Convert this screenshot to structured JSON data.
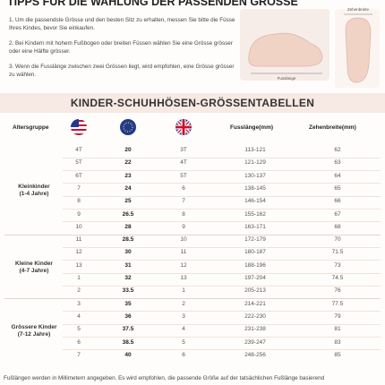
{
  "header": {
    "title": "TIPPS FÜR DIE WAHLUNG DER PASSENDEN GRÖSSE",
    "tips": [
      "1. Um die passendste Grösse und den besten Sitz zu erhalten, messen Sie bitte die Füsse Ihres Kindes, bevor Sie einkaufen.",
      "2. Bei Kindern mit hohem Fußbogen oder breiten Füssen wählen Sie eine Grösse grösser oder eine Hälfte grösser.",
      "3. Wenn die Fusslänge zwischen zwei Grössen liegt, wird empfohlen, eine Grösse grösser zu wählen."
    ],
    "illustration": {
      "width_label": "Zehenbreite",
      "length_label": "Fusslänge"
    }
  },
  "table": {
    "title": "KINDER-SCHUHHÖSEN-GRÖSSENTABELLEN",
    "headers": {
      "group": "Altersgruppe",
      "length": "Fusslänge(mm)",
      "width": "Zehenbreite(mm)"
    },
    "groups": [
      {
        "name": "Kleinkinder",
        "ages": "(1-4 Jahre)",
        "rows": [
          [
            "4T",
            "20",
            "3T",
            "113-121",
            "62"
          ],
          [
            "5T",
            "22",
            "4T",
            "121-129",
            "63"
          ],
          [
            "6T",
            "23",
            "5T",
            "130-137",
            "64"
          ],
          [
            "7",
            "24",
            "6",
            "138-145",
            "65"
          ],
          [
            "8",
            "25",
            "7",
            "146-154",
            "66"
          ],
          [
            "9",
            "26.5",
            "8",
            "155-162",
            "67"
          ],
          [
            "10",
            "28",
            "9",
            "163-171",
            "68"
          ]
        ]
      },
      {
        "name": "Kleine Kinder",
        "ages": "(4-7 Jahre)",
        "rows": [
          [
            "11",
            "28.5",
            "10",
            "172-179",
            "70"
          ],
          [
            "12",
            "30",
            "11",
            "180-187",
            "71.5"
          ],
          [
            "13",
            "31",
            "12",
            "188-196",
            "73"
          ],
          [
            "1",
            "32",
            "13",
            "197-204",
            "74.5"
          ],
          [
            "2",
            "33.5",
            "1",
            "205-213",
            "76"
          ]
        ]
      },
      {
        "name": "Grössere Kinder",
        "ages": "(7-12 Jahre)",
        "rows": [
          [
            "3",
            "35",
            "2",
            "214-221",
            "77.5"
          ],
          [
            "4",
            "36",
            "3",
            "222-230",
            "79"
          ],
          [
            "5",
            "37.5",
            "4",
            "231-238",
            "81"
          ],
          [
            "6",
            "38.5",
            "5",
            "239-247",
            "83"
          ],
          [
            "7",
            "40",
            "6",
            "248-256",
            "85"
          ]
        ]
      }
    ]
  },
  "footer": "Fußlängen werden in Millimetern angegeben. Es wird empfohlen, die passende Größe auf der tatsächlichen Fußlänge basierend"
}
